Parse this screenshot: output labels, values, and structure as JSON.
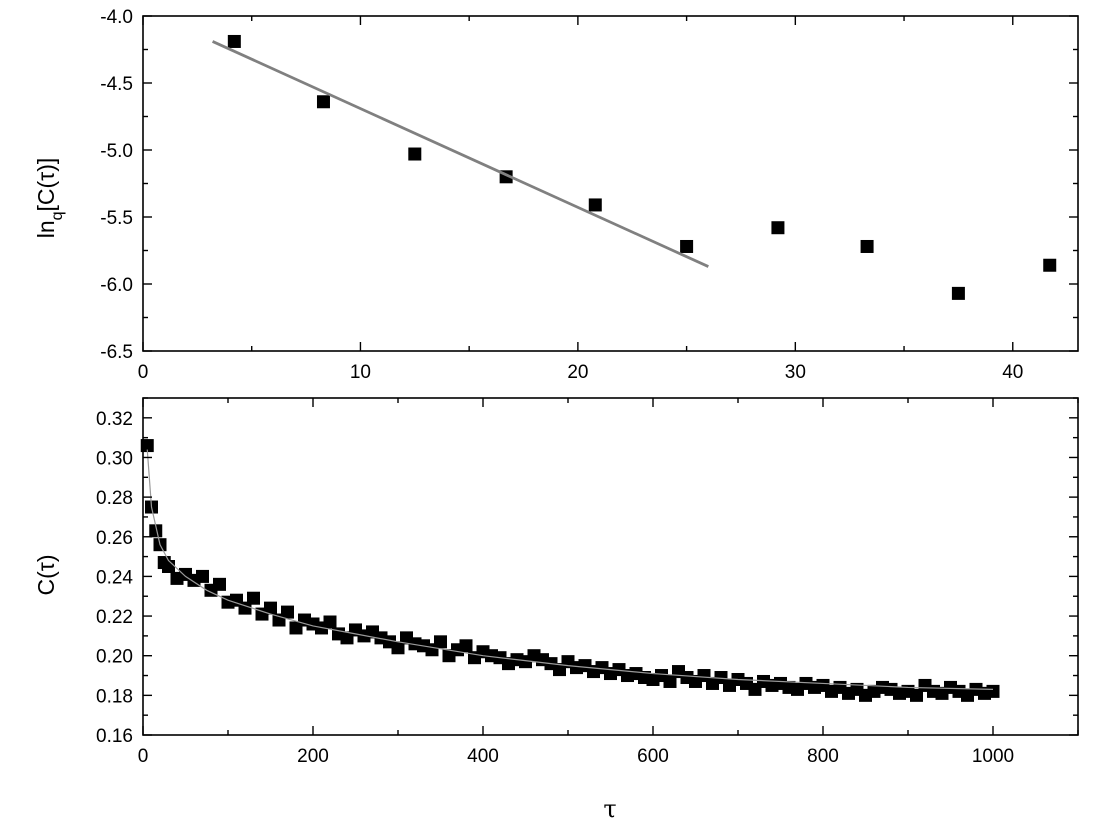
{
  "chart_data": [
    {
      "type": "scatter",
      "title": "",
      "xlabel": "",
      "ylabel": {
        "base": "ln",
        "sub": "q",
        "rest": "[C(τ)]"
      },
      "xlim": [
        0,
        43
      ],
      "ylim": [
        -6.5,
        -4.0
      ],
      "xticks": [
        "0",
        "10",
        "20",
        "30",
        "40"
      ],
      "xtick_values": [
        0,
        10,
        20,
        30,
        40
      ],
      "yticks": [
        "-4.0",
        "-4.5",
        "-5.0",
        "-5.5",
        "-6.0",
        "-6.5"
      ],
      "ytick_values": [
        -4.0,
        -4.5,
        -5.0,
        -5.5,
        -6.0,
        -6.5
      ],
      "grid": false,
      "marker_color": "#000000",
      "fit_line_color": "#808080",
      "points": {
        "x": [
          4.2,
          8.3,
          12.5,
          16.7,
          20.8,
          25.0,
          29.2,
          33.3,
          37.5,
          41.7
        ],
        "y": [
          -4.19,
          -4.64,
          -5.03,
          -5.2,
          -5.41,
          -5.72,
          -5.58,
          -5.72,
          -6.07,
          -5.86
        ]
      },
      "fit_line": {
        "x": [
          3.2,
          26.0
        ],
        "y": [
          -4.19,
          -5.87
        ]
      }
    },
    {
      "type": "scatter",
      "title": "",
      "xlabel": "τ",
      "ylabel": "C(τ)",
      "xlim": [
        0,
        1100
      ],
      "ylim": [
        0.16,
        0.33
      ],
      "xticks": [
        "0",
        "200",
        "400",
        "600",
        "800",
        "1000"
      ],
      "xtick_values": [
        0,
        200,
        400,
        600,
        800,
        1000
      ],
      "yticks": [
        "0.16",
        "0.18",
        "0.20",
        "0.22",
        "0.24",
        "0.26",
        "0.28",
        "0.30",
        "0.32"
      ],
      "ytick_values": [
        0.16,
        0.18,
        0.2,
        0.22,
        0.24,
        0.26,
        0.28,
        0.3,
        0.32
      ],
      "grid": false,
      "marker_color": "#000000",
      "fit_line_color": "#9a9a9a",
      "points": {
        "x": [
          5,
          10,
          15,
          20,
          25,
          30,
          40,
          50,
          60,
          70,
          80,
          90,
          100,
          110,
          120,
          130,
          140,
          150,
          160,
          170,
          180,
          190,
          200,
          210,
          220,
          230,
          240,
          250,
          260,
          270,
          280,
          290,
          300,
          310,
          320,
          330,
          340,
          350,
          360,
          370,
          380,
          390,
          400,
          410,
          420,
          430,
          440,
          450,
          460,
          470,
          480,
          490,
          500,
          510,
          520,
          530,
          540,
          550,
          560,
          570,
          580,
          590,
          600,
          610,
          620,
          630,
          640,
          650,
          660,
          670,
          680,
          690,
          700,
          710,
          720,
          730,
          740,
          750,
          760,
          770,
          780,
          790,
          800,
          810,
          820,
          830,
          840,
          850,
          860,
          870,
          880,
          890,
          900,
          910,
          920,
          930,
          940,
          950,
          960,
          970,
          980,
          990,
          1000
        ],
        "y": [
          0.306,
          0.275,
          0.263,
          0.256,
          0.247,
          0.245,
          0.239,
          0.241,
          0.238,
          0.24,
          0.233,
          0.236,
          0.227,
          0.228,
          0.224,
          0.229,
          0.221,
          0.224,
          0.218,
          0.222,
          0.214,
          0.218,
          0.216,
          0.214,
          0.217,
          0.211,
          0.209,
          0.213,
          0.21,
          0.212,
          0.209,
          0.207,
          0.204,
          0.209,
          0.206,
          0.205,
          0.203,
          0.207,
          0.2,
          0.203,
          0.205,
          0.199,
          0.202,
          0.2,
          0.199,
          0.196,
          0.198,
          0.197,
          0.2,
          0.198,
          0.196,
          0.193,
          0.197,
          0.194,
          0.195,
          0.192,
          0.194,
          0.191,
          0.193,
          0.19,
          0.191,
          0.189,
          0.188,
          0.19,
          0.187,
          0.192,
          0.189,
          0.187,
          0.19,
          0.186,
          0.189,
          0.185,
          0.188,
          0.186,
          0.183,
          0.187,
          0.185,
          0.186,
          0.184,
          0.183,
          0.186,
          0.184,
          0.185,
          0.182,
          0.184,
          0.181,
          0.183,
          0.18,
          0.182,
          0.184,
          0.183,
          0.181,
          0.182,
          0.18,
          0.185,
          0.182,
          0.181,
          0.184,
          0.182,
          0.18,
          0.183,
          0.181,
          0.182
        ]
      },
      "fit_line": {
        "x": [
          5,
          10,
          20,
          30,
          50,
          75,
          100,
          150,
          200,
          250,
          300,
          400,
          500,
          600,
          700,
          800,
          900,
          1000
        ],
        "y": [
          0.304,
          0.275,
          0.256,
          0.248,
          0.24,
          0.233,
          0.228,
          0.221,
          0.215,
          0.211,
          0.207,
          0.2,
          0.195,
          0.191,
          0.188,
          0.186,
          0.184,
          0.183
        ]
      }
    }
  ]
}
